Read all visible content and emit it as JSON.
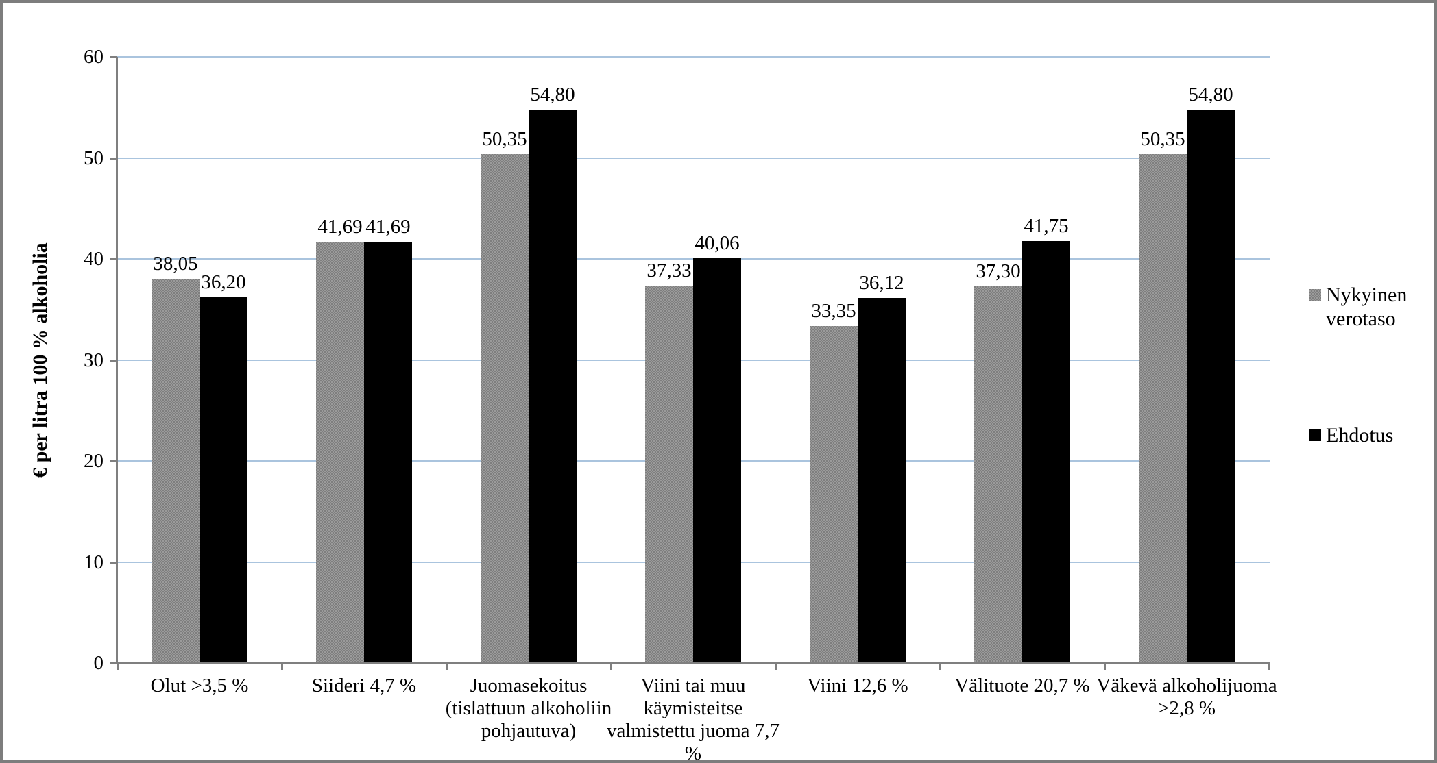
{
  "chart_data": {
    "type": "bar",
    "title": "",
    "xlabel": "",
    "ylabel": "€ per litra 100 % alkoholia",
    "ylim": [
      0,
      60
    ],
    "yticks": [
      0,
      10,
      20,
      30,
      40,
      50,
      60
    ],
    "grid": true,
    "legend_position": "right",
    "colors": {
      "gridline": "#aac4de",
      "axis": "#7f7f7f",
      "series_nykyinen": "#8c8c8c",
      "series_ehdotus": "#000000"
    },
    "categories": [
      "Olut >3,5 %",
      "Siideri 4,7 %",
      "Juomasekoitus\n(tislattuun alkoholiin\npohjautuva)",
      "Viini tai muu\nkäymisteitse\nvalmistettu juoma 7,7\n%",
      "Viini 12,6 %",
      "Välituote 20,7 %",
      "Väkevä alkoholijuoma\n>2,8 %"
    ],
    "series": [
      {
        "name": "Nykyinen verotaso",
        "color": "#8c8c8c",
        "pattern": true,
        "values": [
          38.05,
          41.69,
          50.35,
          37.33,
          33.35,
          37.3,
          50.35
        ],
        "labels": [
          "38,05",
          "41,69",
          "50,35",
          "37,33",
          "33,35",
          "37,30",
          "50,35"
        ]
      },
      {
        "name": "Ehdotus",
        "color": "#000000",
        "pattern": false,
        "values": [
          36.2,
          41.69,
          54.8,
          40.06,
          36.12,
          41.75,
          54.8
        ],
        "labels": [
          "36,20",
          "41,69",
          "54,80",
          "40,06",
          "36,12",
          "41,75",
          "54,80"
        ]
      }
    ]
  }
}
